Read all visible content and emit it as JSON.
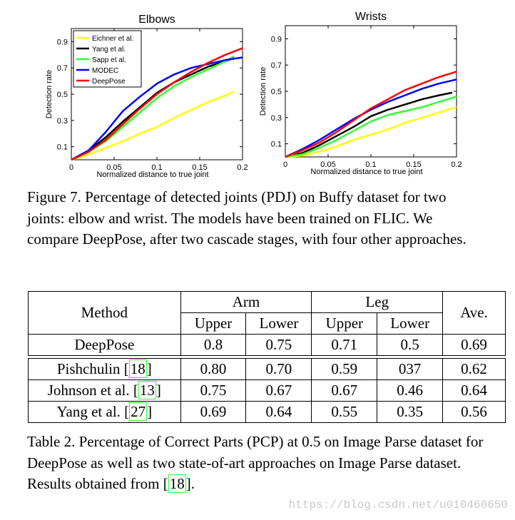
{
  "chart_data": [
    {
      "type": "line",
      "title": "Elbows",
      "xlabel": "Normalized distance to true joint",
      "ylabel": "Detection rate",
      "xlim": [
        0,
        0.2
      ],
      "ylim": [
        0,
        1.0
      ],
      "x_ticks": [
        "0",
        "0.05",
        "0.1",
        "0.15",
        "0.2"
      ],
      "y_ticks": [
        "0.1",
        "0.3",
        "0.5",
        "0.7",
        "0.9"
      ],
      "legend_position": "top-left",
      "series": [
        {
          "name": "Eichner et al.",
          "color": "#ffff00",
          "x": [
            0,
            0.02,
            0.04,
            0.06,
            0.08,
            0.1,
            0.12,
            0.14,
            0.16,
            0.18,
            0.19
          ],
          "y": [
            0,
            0.04,
            0.09,
            0.14,
            0.2,
            0.25,
            0.32,
            0.38,
            0.44,
            0.49,
            0.52
          ]
        },
        {
          "name": "Yang et al.",
          "color": "#000000",
          "x": [
            0,
            0.02,
            0.04,
            0.06,
            0.08,
            0.1,
            0.12,
            0.14,
            0.16,
            0.18,
            0.19
          ],
          "y": [
            0,
            0.07,
            0.17,
            0.29,
            0.4,
            0.51,
            0.59,
            0.65,
            0.71,
            0.75,
            0.78
          ]
        },
        {
          "name": "Sapp et al.",
          "color": "#33ff33",
          "x": [
            0,
            0.02,
            0.04,
            0.06,
            0.08,
            0.1,
            0.12,
            0.14,
            0.16,
            0.18,
            0.19
          ],
          "y": [
            0,
            0.06,
            0.14,
            0.25,
            0.36,
            0.47,
            0.56,
            0.63,
            0.69,
            0.75,
            0.79
          ]
        },
        {
          "name": "MODEC",
          "color": "#0000ff",
          "x": [
            0,
            0.02,
            0.04,
            0.06,
            0.08,
            0.1,
            0.12,
            0.14,
            0.16,
            0.18,
            0.2
          ],
          "y": [
            0,
            0.07,
            0.21,
            0.37,
            0.48,
            0.58,
            0.65,
            0.7,
            0.73,
            0.76,
            0.78
          ]
        },
        {
          "name": "DeepPose",
          "color": "#ff0000",
          "x": [
            0,
            0.02,
            0.04,
            0.06,
            0.08,
            0.1,
            0.12,
            0.14,
            0.16,
            0.18,
            0.2
          ],
          "y": [
            0,
            0.06,
            0.15,
            0.27,
            0.39,
            0.5,
            0.59,
            0.67,
            0.74,
            0.8,
            0.85
          ]
        }
      ]
    },
    {
      "type": "line",
      "title": "Wrists",
      "xlabel": "Normalized distance to true joint",
      "ylabel": "Detection rate",
      "xlim": [
        0,
        0.2
      ],
      "ylim": [
        0,
        1.0
      ],
      "x_ticks": [
        "0",
        "0.05",
        "0.1",
        "0.15",
        "0.2"
      ],
      "y_ticks": [
        "0.1",
        "0.3",
        "0.5",
        "0.7",
        "0.9"
      ],
      "series": [
        {
          "name": "Eichner et al.",
          "color": "#ffff00",
          "x": [
            0,
            0.02,
            0.04,
            0.06,
            0.08,
            0.1,
            0.12,
            0.14,
            0.16,
            0.18,
            0.2
          ],
          "y": [
            0,
            0.01,
            0.04,
            0.08,
            0.13,
            0.17,
            0.21,
            0.26,
            0.3,
            0.34,
            0.38
          ]
        },
        {
          "name": "Yang et al.",
          "color": "#000000",
          "x": [
            0,
            0.02,
            0.04,
            0.06,
            0.08,
            0.1,
            0.12,
            0.14,
            0.16,
            0.18,
            0.195
          ],
          "y": [
            0,
            0.03,
            0.09,
            0.16,
            0.23,
            0.31,
            0.36,
            0.4,
            0.44,
            0.47,
            0.49
          ]
        },
        {
          "name": "Sapp et al.",
          "color": "#33ff33",
          "x": [
            0,
            0.02,
            0.04,
            0.06,
            0.08,
            0.1,
            0.12,
            0.14,
            0.16,
            0.18,
            0.2
          ],
          "y": [
            0,
            0.02,
            0.07,
            0.13,
            0.2,
            0.27,
            0.32,
            0.35,
            0.38,
            0.42,
            0.46
          ]
        },
        {
          "name": "MODEC",
          "color": "#0000ff",
          "x": [
            0,
            0.02,
            0.04,
            0.06,
            0.08,
            0.1,
            0.12,
            0.14,
            0.16,
            0.18,
            0.2
          ],
          "y": [
            0,
            0.06,
            0.13,
            0.21,
            0.29,
            0.36,
            0.42,
            0.47,
            0.52,
            0.56,
            0.59
          ]
        },
        {
          "name": "DeepPose",
          "color": "#ff0000",
          "x": [
            0,
            0.02,
            0.04,
            0.06,
            0.08,
            0.1,
            0.12,
            0.14,
            0.16,
            0.18,
            0.2
          ],
          "y": [
            0,
            0.05,
            0.11,
            0.19,
            0.28,
            0.37,
            0.44,
            0.51,
            0.56,
            0.61,
            0.65
          ]
        }
      ]
    }
  ],
  "figure_caption": "Figure 7.   Percentage of detected joints (PDJ) on Buffy dataset for two joints: elbow and wrist. The models have been trained on FLIC. We compare DeepPose, after two cascade stages, with four other approaches.",
  "table": {
    "header": {
      "method": "Method",
      "arm": "Arm",
      "leg": "Leg",
      "ave": "Ave.",
      "upper": "Upper",
      "lower": "Lower"
    },
    "rows": [
      {
        "method": "DeepPose",
        "cite": "",
        "cells": [
          "0.8",
          "0.75",
          "0.71",
          "0.5",
          "0.69"
        ]
      },
      {
        "method": "Pishchulin ",
        "cite": "18",
        "cells": [
          "0.80",
          "0.70",
          "0.59",
          "037",
          "0.62"
        ]
      },
      {
        "method": "Johnson et al. ",
        "cite": "13",
        "cells": [
          "0.75",
          "0.67",
          "0.67",
          "0.46",
          "0.64"
        ]
      },
      {
        "method": "Yang et al. ",
        "cite": "27",
        "cells": [
          "0.69",
          "0.64",
          "0.55",
          "0.35",
          "0.56"
        ]
      }
    ]
  },
  "table_caption": {
    "before": "Table 2. Percentage of Correct Parts (PCP) at 0.5 on Image Parse dataset for DeepPose as well as two state-of-art approaches on Image Parse dataset. Results obtained from ",
    "cite": "18",
    "after": "."
  },
  "watermark": "https://blog.csdn.net/u010460650"
}
